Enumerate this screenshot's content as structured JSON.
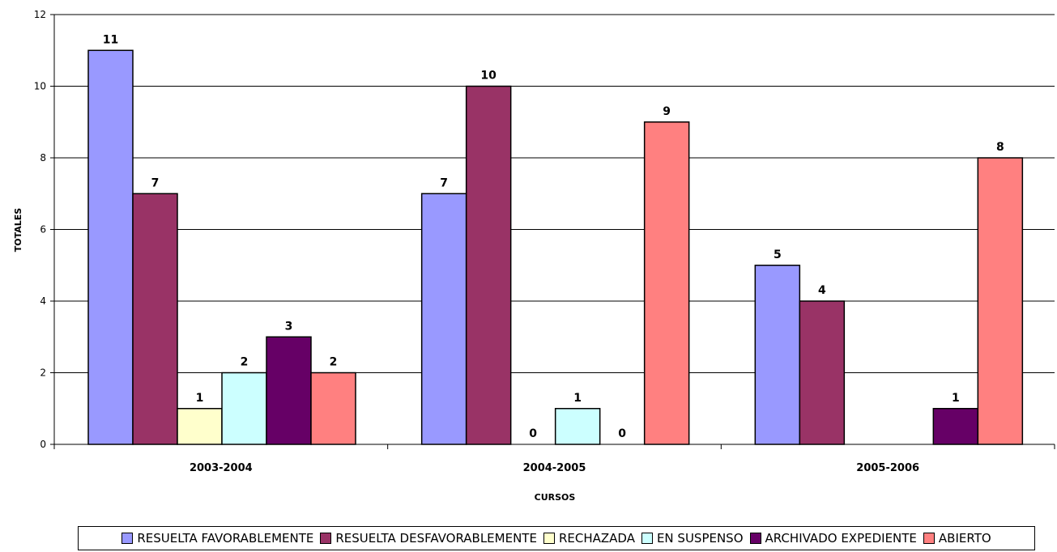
{
  "chart_data": {
    "type": "bar",
    "title": "",
    "xlabel": "CURSOS",
    "ylabel": "TOTALES",
    "categories": [
      "2003-2004",
      "2004-2005",
      "2005-2006"
    ],
    "ylim": [
      0,
      12
    ],
    "yticks": [
      0,
      2,
      4,
      6,
      8,
      10,
      12
    ],
    "grid": true,
    "legend_position": "bottom",
    "series": [
      {
        "name": "RESUELTA FAVORABLEMENTE",
        "color": "#9999FF",
        "values": [
          11,
          7,
          5
        ],
        "labels": [
          "11",
          "7",
          "5"
        ]
      },
      {
        "name": "RESUELTA DESFAVORABLEMENTE",
        "color": "#993366",
        "values": [
          7,
          10,
          4
        ],
        "labels": [
          "7",
          "10",
          "4"
        ]
      },
      {
        "name": "RECHAZADA",
        "color": "#FFFFCC",
        "values": [
          1,
          0,
          null
        ],
        "labels": [
          "1",
          "0",
          ""
        ]
      },
      {
        "name": "EN SUSPENSO",
        "color": "#CCFFFF",
        "values": [
          2,
          1,
          null
        ],
        "labels": [
          "2",
          "1",
          ""
        ]
      },
      {
        "name": "ARCHIVADO EXPEDIENTE",
        "color": "#660066",
        "values": [
          3,
          0,
          1
        ],
        "labels": [
          "3",
          "0",
          "1"
        ]
      },
      {
        "name": "ABIERTO",
        "color": "#FF8080",
        "values": [
          2,
          9,
          8
        ],
        "labels": [
          "2",
          "9",
          "8"
        ]
      }
    ]
  }
}
